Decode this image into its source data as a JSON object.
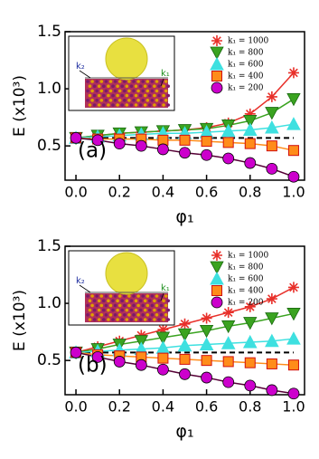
{
  "chart_data": [
    {
      "type": "line",
      "panel_label": "(a)",
      "xlabel": "φ₁",
      "ylabel": "E (x10³)",
      "inset_labels": [
        "k₂",
        "k₁"
      ],
      "x": [
        0,
        0.1,
        0.2,
        0.3,
        0.4,
        0.5,
        0.6,
        0.7,
        0.8,
        0.9,
        1.0
      ],
      "reference_line": 0.57,
      "series": [
        {
          "name": "k₁ = 1000",
          "color": "#e8302a",
          "marker": "star",
          "values": [
            0.57,
            0.59,
            0.61,
            0.62,
            0.63,
            0.64,
            0.66,
            0.7,
            0.78,
            0.93,
            1.14
          ]
        },
        {
          "name": "k₁ = 800",
          "color": "#3aa320",
          "marker": "triangle-down",
          "values": [
            0.57,
            0.59,
            0.61,
            0.62,
            0.63,
            0.64,
            0.65,
            0.68,
            0.72,
            0.79,
            0.91
          ]
        },
        {
          "name": "k₁ = 600",
          "color": "#3ee0e0",
          "marker": "triangle-up",
          "values": [
            0.57,
            0.58,
            0.59,
            0.6,
            0.61,
            0.61,
            0.62,
            0.63,
            0.64,
            0.66,
            0.69
          ]
        },
        {
          "name": "k₁ = 400",
          "color": "#ff8c1a",
          "marker": "square",
          "values": [
            0.57,
            0.56,
            0.56,
            0.56,
            0.55,
            0.55,
            0.54,
            0.53,
            0.52,
            0.5,
            0.46
          ]
        },
        {
          "name": "k₁ = 200",
          "color": "#cc00cc",
          "marker": "circle",
          "values": [
            0.57,
            0.55,
            0.52,
            0.5,
            0.47,
            0.44,
            0.42,
            0.39,
            0.35,
            0.3,
            0.23
          ]
        }
      ],
      "xlim": [
        -0.05,
        1.05
      ],
      "ylim": [
        0.2,
        1.5
      ],
      "xticks": [
        {
          "value": 0,
          "label": "0.0"
        },
        0.2,
        0.4,
        0.6,
        0.8,
        {
          "value": 1,
          "label": "1.0"
        }
      ],
      "yticks": [
        0.5,
        {
          "value": 1,
          "label": "1.0"
        },
        1.5
      ]
    },
    {
      "type": "line",
      "panel_label": "(b)",
      "xlabel": "φ₁",
      "ylabel": "E (x10³)",
      "inset_labels": [
        "k₂",
        "k₁"
      ],
      "x": [
        0,
        0.1,
        0.2,
        0.3,
        0.4,
        0.5,
        0.6,
        0.7,
        0.8,
        0.9,
        1.0
      ],
      "reference_line": 0.57,
      "series": [
        {
          "name": "k₁ = 1000",
          "color": "#e8302a",
          "marker": "star",
          "values": [
            0.57,
            0.62,
            0.67,
            0.72,
            0.77,
            0.82,
            0.87,
            0.92,
            0.97,
            1.04,
            1.14
          ]
        },
        {
          "name": "k₁ = 800",
          "color": "#3aa320",
          "marker": "triangle-down",
          "values": [
            0.57,
            0.6,
            0.64,
            0.67,
            0.7,
            0.73,
            0.76,
            0.8,
            0.83,
            0.87,
            0.91
          ]
        },
        {
          "name": "k₁ = 600",
          "color": "#3ee0e0",
          "marker": "triangle-up",
          "values": [
            0.57,
            0.58,
            0.59,
            0.6,
            0.61,
            0.63,
            0.64,
            0.65,
            0.66,
            0.67,
            0.69
          ]
        },
        {
          "name": "k₁ = 400",
          "color": "#ff8c1a",
          "marker": "square",
          "values": [
            0.57,
            0.55,
            0.54,
            0.53,
            0.52,
            0.51,
            0.5,
            0.49,
            0.48,
            0.47,
            0.46
          ]
        },
        {
          "name": "k₁ = 200",
          "color": "#cc00cc",
          "marker": "circle",
          "values": [
            0.57,
            0.53,
            0.49,
            0.46,
            0.42,
            0.38,
            0.35,
            0.31,
            0.28,
            0.24,
            0.21
          ]
        }
      ],
      "xlim": [
        -0.05,
        1.05
      ],
      "ylim": [
        0.2,
        1.5
      ],
      "xticks": [
        {
          "value": 0,
          "label": "0.0"
        },
        0.2,
        0.4,
        0.6,
        0.8,
        {
          "value": 1,
          "label": "1.0"
        }
      ],
      "yticks": [
        0.5,
        {
          "value": 1,
          "label": "1.0"
        },
        1.5
      ]
    }
  ]
}
